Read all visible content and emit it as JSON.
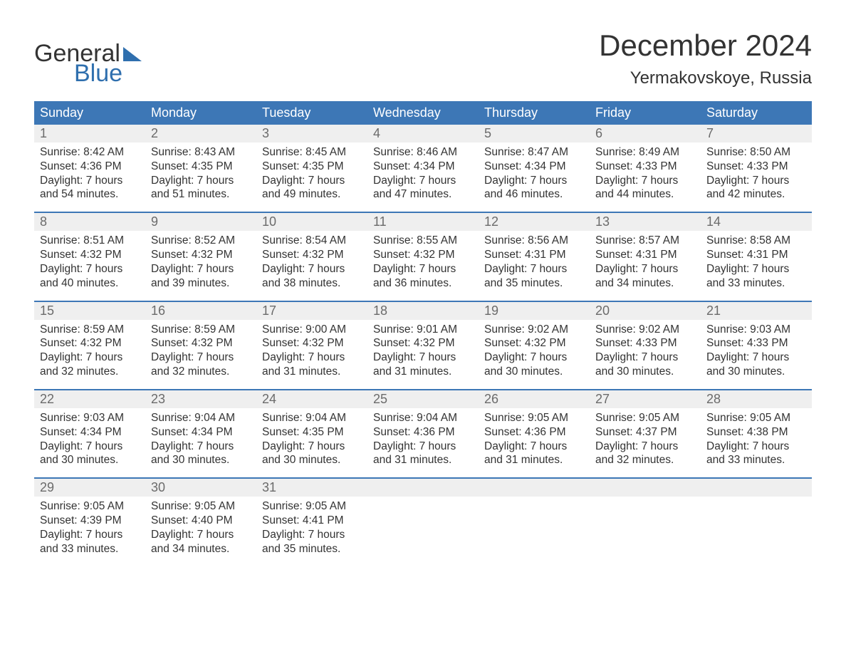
{
  "logo": {
    "text_general": "General",
    "text_blue": "Blue"
  },
  "title": {
    "month": "December 2024",
    "location": "Yermakovskoye, Russia"
  },
  "colors": {
    "header_bg": "#3d77b6",
    "header_text": "#ffffff",
    "daynum_bg": "#efefef",
    "daynum_text": "#6b6b6b",
    "body_text": "#333333",
    "week_border": "#3d77b6",
    "logo_blue": "#2f6fae",
    "page_bg": "#ffffff"
  },
  "fontsize": {
    "title_month": 42,
    "title_location": 24,
    "header": 18,
    "daynum": 18,
    "body": 15.5,
    "logo": 34
  },
  "weekdays": [
    "Sunday",
    "Monday",
    "Tuesday",
    "Wednesday",
    "Thursday",
    "Friday",
    "Saturday"
  ],
  "weeks": [
    [
      {
        "num": "1",
        "sunrise": "Sunrise: 8:42 AM",
        "sunset": "Sunset: 4:36 PM",
        "dl1": "Daylight: 7 hours",
        "dl2": "and 54 minutes."
      },
      {
        "num": "2",
        "sunrise": "Sunrise: 8:43 AM",
        "sunset": "Sunset: 4:35 PM",
        "dl1": "Daylight: 7 hours",
        "dl2": "and 51 minutes."
      },
      {
        "num": "3",
        "sunrise": "Sunrise: 8:45 AM",
        "sunset": "Sunset: 4:35 PM",
        "dl1": "Daylight: 7 hours",
        "dl2": "and 49 minutes."
      },
      {
        "num": "4",
        "sunrise": "Sunrise: 8:46 AM",
        "sunset": "Sunset: 4:34 PM",
        "dl1": "Daylight: 7 hours",
        "dl2": "and 47 minutes."
      },
      {
        "num": "5",
        "sunrise": "Sunrise: 8:47 AM",
        "sunset": "Sunset: 4:34 PM",
        "dl1": "Daylight: 7 hours",
        "dl2": "and 46 minutes."
      },
      {
        "num": "6",
        "sunrise": "Sunrise: 8:49 AM",
        "sunset": "Sunset: 4:33 PM",
        "dl1": "Daylight: 7 hours",
        "dl2": "and 44 minutes."
      },
      {
        "num": "7",
        "sunrise": "Sunrise: 8:50 AM",
        "sunset": "Sunset: 4:33 PM",
        "dl1": "Daylight: 7 hours",
        "dl2": "and 42 minutes."
      }
    ],
    [
      {
        "num": "8",
        "sunrise": "Sunrise: 8:51 AM",
        "sunset": "Sunset: 4:32 PM",
        "dl1": "Daylight: 7 hours",
        "dl2": "and 40 minutes."
      },
      {
        "num": "9",
        "sunrise": "Sunrise: 8:52 AM",
        "sunset": "Sunset: 4:32 PM",
        "dl1": "Daylight: 7 hours",
        "dl2": "and 39 minutes."
      },
      {
        "num": "10",
        "sunrise": "Sunrise: 8:54 AM",
        "sunset": "Sunset: 4:32 PM",
        "dl1": "Daylight: 7 hours",
        "dl2": "and 38 minutes."
      },
      {
        "num": "11",
        "sunrise": "Sunrise: 8:55 AM",
        "sunset": "Sunset: 4:32 PM",
        "dl1": "Daylight: 7 hours",
        "dl2": "and 36 minutes."
      },
      {
        "num": "12",
        "sunrise": "Sunrise: 8:56 AM",
        "sunset": "Sunset: 4:31 PM",
        "dl1": "Daylight: 7 hours",
        "dl2": "and 35 minutes."
      },
      {
        "num": "13",
        "sunrise": "Sunrise: 8:57 AM",
        "sunset": "Sunset: 4:31 PM",
        "dl1": "Daylight: 7 hours",
        "dl2": "and 34 minutes."
      },
      {
        "num": "14",
        "sunrise": "Sunrise: 8:58 AM",
        "sunset": "Sunset: 4:31 PM",
        "dl1": "Daylight: 7 hours",
        "dl2": "and 33 minutes."
      }
    ],
    [
      {
        "num": "15",
        "sunrise": "Sunrise: 8:59 AM",
        "sunset": "Sunset: 4:32 PM",
        "dl1": "Daylight: 7 hours",
        "dl2": "and 32 minutes."
      },
      {
        "num": "16",
        "sunrise": "Sunrise: 8:59 AM",
        "sunset": "Sunset: 4:32 PM",
        "dl1": "Daylight: 7 hours",
        "dl2": "and 32 minutes."
      },
      {
        "num": "17",
        "sunrise": "Sunrise: 9:00 AM",
        "sunset": "Sunset: 4:32 PM",
        "dl1": "Daylight: 7 hours",
        "dl2": "and 31 minutes."
      },
      {
        "num": "18",
        "sunrise": "Sunrise: 9:01 AM",
        "sunset": "Sunset: 4:32 PM",
        "dl1": "Daylight: 7 hours",
        "dl2": "and 31 minutes."
      },
      {
        "num": "19",
        "sunrise": "Sunrise: 9:02 AM",
        "sunset": "Sunset: 4:32 PM",
        "dl1": "Daylight: 7 hours",
        "dl2": "and 30 minutes."
      },
      {
        "num": "20",
        "sunrise": "Sunrise: 9:02 AM",
        "sunset": "Sunset: 4:33 PM",
        "dl1": "Daylight: 7 hours",
        "dl2": "and 30 minutes."
      },
      {
        "num": "21",
        "sunrise": "Sunrise: 9:03 AM",
        "sunset": "Sunset: 4:33 PM",
        "dl1": "Daylight: 7 hours",
        "dl2": "and 30 minutes."
      }
    ],
    [
      {
        "num": "22",
        "sunrise": "Sunrise: 9:03 AM",
        "sunset": "Sunset: 4:34 PM",
        "dl1": "Daylight: 7 hours",
        "dl2": "and 30 minutes."
      },
      {
        "num": "23",
        "sunrise": "Sunrise: 9:04 AM",
        "sunset": "Sunset: 4:34 PM",
        "dl1": "Daylight: 7 hours",
        "dl2": "and 30 minutes."
      },
      {
        "num": "24",
        "sunrise": "Sunrise: 9:04 AM",
        "sunset": "Sunset: 4:35 PM",
        "dl1": "Daylight: 7 hours",
        "dl2": "and 30 minutes."
      },
      {
        "num": "25",
        "sunrise": "Sunrise: 9:04 AM",
        "sunset": "Sunset: 4:36 PM",
        "dl1": "Daylight: 7 hours",
        "dl2": "and 31 minutes."
      },
      {
        "num": "26",
        "sunrise": "Sunrise: 9:05 AM",
        "sunset": "Sunset: 4:36 PM",
        "dl1": "Daylight: 7 hours",
        "dl2": "and 31 minutes."
      },
      {
        "num": "27",
        "sunrise": "Sunrise: 9:05 AM",
        "sunset": "Sunset: 4:37 PM",
        "dl1": "Daylight: 7 hours",
        "dl2": "and 32 minutes."
      },
      {
        "num": "28",
        "sunrise": "Sunrise: 9:05 AM",
        "sunset": "Sunset: 4:38 PM",
        "dl1": "Daylight: 7 hours",
        "dl2": "and 33 minutes."
      }
    ],
    [
      {
        "num": "29",
        "sunrise": "Sunrise: 9:05 AM",
        "sunset": "Sunset: 4:39 PM",
        "dl1": "Daylight: 7 hours",
        "dl2": "and 33 minutes."
      },
      {
        "num": "30",
        "sunrise": "Sunrise: 9:05 AM",
        "sunset": "Sunset: 4:40 PM",
        "dl1": "Daylight: 7 hours",
        "dl2": "and 34 minutes."
      },
      {
        "num": "31",
        "sunrise": "Sunrise: 9:05 AM",
        "sunset": "Sunset: 4:41 PM",
        "dl1": "Daylight: 7 hours",
        "dl2": "and 35 minutes."
      },
      {
        "num": "",
        "empty": true
      },
      {
        "num": "",
        "empty": true
      },
      {
        "num": "",
        "empty": true
      },
      {
        "num": "",
        "empty": true
      }
    ]
  ]
}
